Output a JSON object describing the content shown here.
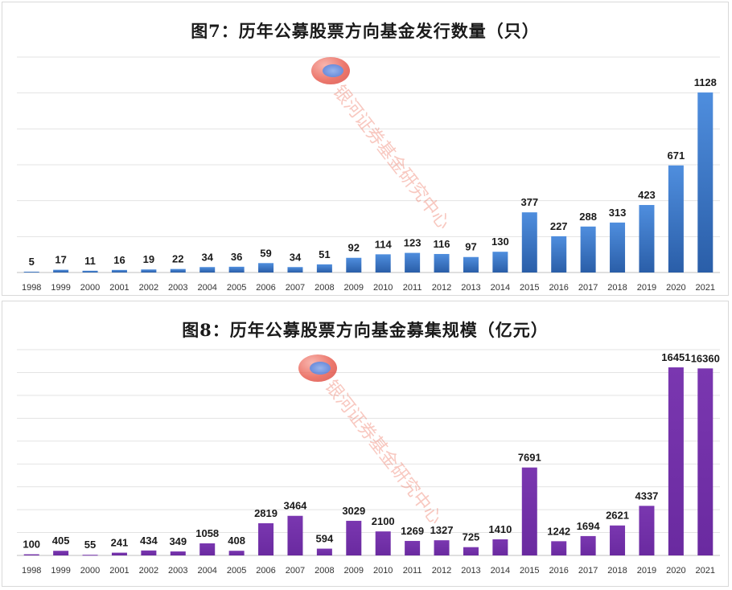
{
  "chart_data": [
    {
      "type": "bar",
      "title": "图7：历年公募股票方向基金发行数量（只）",
      "categories": [
        "1998",
        "1999",
        "2000",
        "2001",
        "2002",
        "2003",
        "2004",
        "2005",
        "2006",
        "2007",
        "2008",
        "2009",
        "2010",
        "2011",
        "2012",
        "2013",
        "2014",
        "2015",
        "2016",
        "2017",
        "2018",
        "2019",
        "2020",
        "2021"
      ],
      "values": [
        5,
        17,
        11,
        16,
        19,
        22,
        34,
        36,
        59,
        34,
        51,
        92,
        114,
        123,
        116,
        97,
        130,
        377,
        227,
        288,
        313,
        423,
        671,
        1128
      ],
      "ylim": [
        0,
        1350
      ],
      "grid": true,
      "colors": {
        "top": "#4f8ede",
        "bottom": "#2a5ea8"
      }
    },
    {
      "type": "bar",
      "title": "图8：历年公募股票方向基金募集规模（亿元）",
      "categories": [
        "1998",
        "1999",
        "2000",
        "2001",
        "2002",
        "2003",
        "2004",
        "2005",
        "2006",
        "2007",
        "2008",
        "2009",
        "2010",
        "2011",
        "2012",
        "2013",
        "2014",
        "2015",
        "2016",
        "2017",
        "2018",
        "2019",
        "2020",
        "2021"
      ],
      "values": [
        100,
        405,
        55,
        241,
        434,
        349,
        1058,
        408,
        2819,
        3464,
        594,
        3029,
        2100,
        1269,
        1327,
        725,
        1410,
        7691,
        1242,
        1694,
        2621,
        4337,
        16451,
        16360
      ],
      "ylim": [
        0,
        18000
      ],
      "grid": true,
      "colors": {
        "top": "#7a37b0",
        "bottom": "#6a2aa0"
      }
    }
  ],
  "watermark": {
    "text": "银河证券基金研究中心",
    "logo_icon": "galaxy-securities-logo-icon"
  }
}
